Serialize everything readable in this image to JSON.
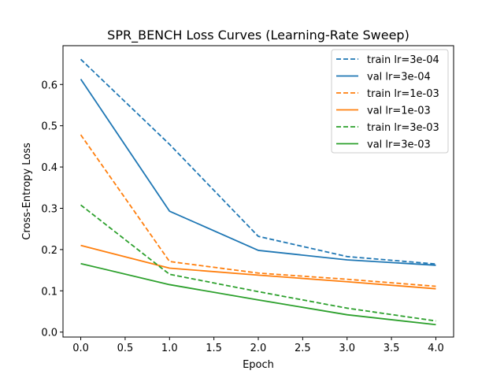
{
  "chart_data": {
    "type": "line",
    "title": "SPR_BENCH Loss Curves (Learning-Rate Sweep)",
    "xlabel": "Epoch",
    "ylabel": "Cross-Entropy Loss",
    "x": [
      0,
      1,
      2,
      3,
      4
    ],
    "xlim": [
      -0.2,
      4.2
    ],
    "ylim": [
      -0.012,
      0.694
    ],
    "xticks": [
      "0.0",
      "0.5",
      "1.0",
      "1.5",
      "2.0",
      "2.5",
      "3.0",
      "3.5",
      "4.0"
    ],
    "yticks": [
      "0.0",
      "0.1",
      "0.2",
      "0.3",
      "0.4",
      "0.5",
      "0.6"
    ],
    "grid": false,
    "legend_position": "top-right",
    "series": [
      {
        "name": "train lr=3e-04",
        "color": "#1f77b4",
        "dash": true,
        "values": [
          0.661,
          0.455,
          0.232,
          0.183,
          0.165
        ]
      },
      {
        "name": "val lr=3e-04",
        "color": "#1f77b4",
        "dash": false,
        "values": [
          0.613,
          0.293,
          0.198,
          0.175,
          0.162
        ]
      },
      {
        "name": "train lr=1e-03",
        "color": "#ff7f0e",
        "dash": true,
        "values": [
          0.478,
          0.171,
          0.143,
          0.128,
          0.111
        ]
      },
      {
        "name": "val lr=1e-03",
        "color": "#ff7f0e",
        "dash": false,
        "values": [
          0.21,
          0.155,
          0.138,
          0.122,
          0.105
        ]
      },
      {
        "name": "train lr=3e-03",
        "color": "#2ca02c",
        "dash": true,
        "values": [
          0.308,
          0.14,
          0.098,
          0.058,
          0.027
        ]
      },
      {
        "name": "val lr=3e-03",
        "color": "#2ca02c",
        "dash": false,
        "values": [
          0.166,
          0.115,
          0.078,
          0.042,
          0.018
        ]
      }
    ]
  }
}
